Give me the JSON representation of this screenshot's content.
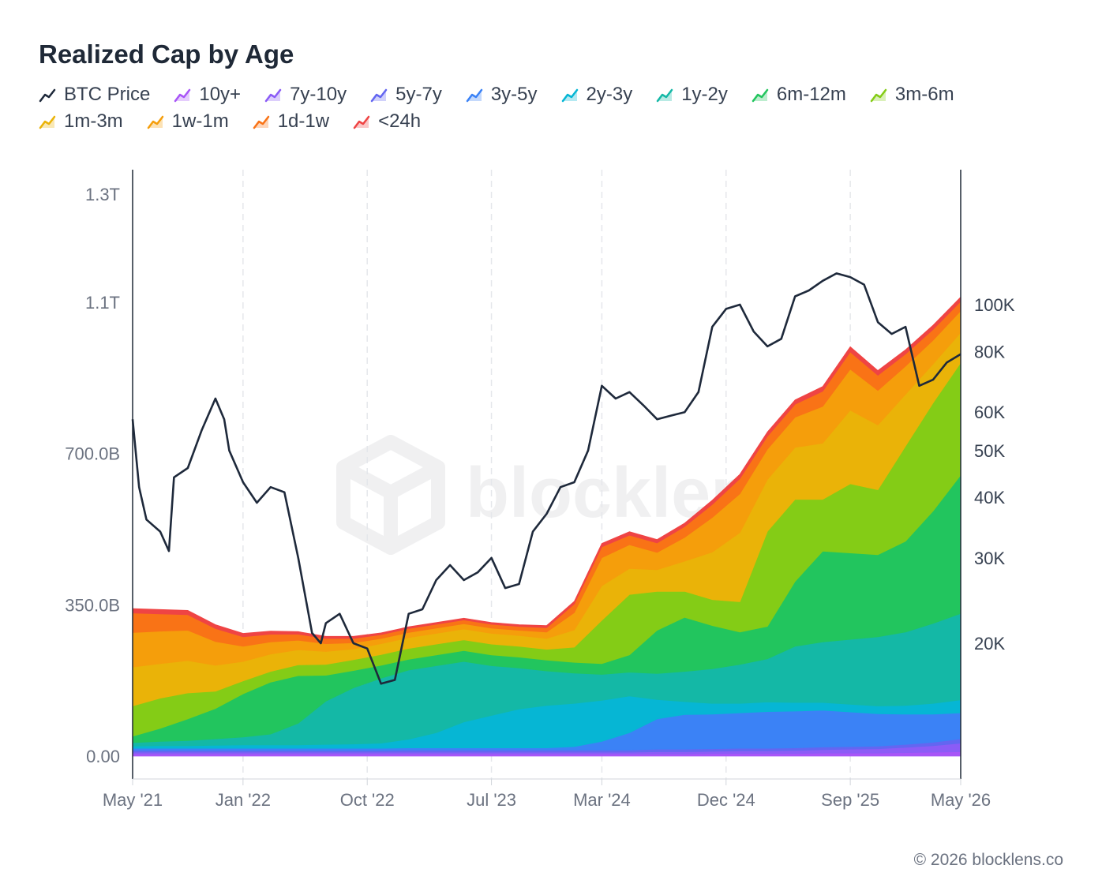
{
  "chart_data": {
    "type": "area",
    "title": "Realized Cap by Age",
    "x_ticks": [
      "May '21",
      "Jan '22",
      "Oct '22",
      "Jul '23",
      "Mar '24",
      "Dec '24",
      "Sep '25",
      "May '26"
    ],
    "x_tick_times": [
      "2021-05",
      "2022-01",
      "2022-10",
      "2023-07",
      "2024-03",
      "2024-12",
      "2025-09",
      "2026-05"
    ],
    "x_range": [
      "2021-05",
      "2026-05"
    ],
    "y_left": {
      "ticks": [
        "0.00",
        "350.0B",
        "700.0B",
        "1.1T",
        "1.3T"
      ],
      "tick_values_billion": [
        0,
        350,
        700,
        1050,
        1300
      ],
      "range_billion": [
        0,
        1350
      ]
    },
    "y_right": {
      "scale": "log",
      "ticks": [
        "20K",
        "30K",
        "40K",
        "50K",
        "60K",
        "80K",
        "100K"
      ],
      "tick_values": [
        20000,
        30000,
        40000,
        50000,
        60000,
        80000,
        100000
      ]
    },
    "legend_position": "top-left",
    "grid": "vertical-dashed",
    "x": [
      "2021-05",
      "2021-07",
      "2021-09",
      "2021-11",
      "2022-01",
      "2022-03",
      "2022-05",
      "2022-07",
      "2022-09",
      "2022-11",
      "2023-01",
      "2023-03",
      "2023-05",
      "2023-07",
      "2023-09",
      "2023-11",
      "2024-01",
      "2024-03",
      "2024-05",
      "2024-07",
      "2024-09",
      "2024-11",
      "2025-01",
      "2025-03",
      "2025-05",
      "2025-07",
      "2025-09",
      "2025-11",
      "2026-01",
      "2026-03",
      "2026-05"
    ],
    "series": [
      {
        "name": "10y+",
        "color": "#a855f7",
        "values": [
          5,
          5,
          5,
          5,
          5,
          5,
          5,
          5,
          5,
          5,
          5,
          5,
          5,
          5,
          5,
          5,
          5,
          5,
          5,
          5,
          5,
          6,
          6,
          6,
          6,
          7,
          7,
          7,
          8,
          9,
          10
        ]
      },
      {
        "name": "7y-10y",
        "color": "#8b5cf6",
        "values": [
          4,
          4,
          4,
          4,
          4,
          4,
          4,
          4,
          4,
          4,
          4,
          4,
          4,
          4,
          4,
          4,
          4,
          4,
          4,
          5,
          5,
          5,
          6,
          6,
          7,
          8,
          9,
          10,
          12,
          15,
          20
        ]
      },
      {
        "name": "5y-7y",
        "color": "#6366f1",
        "values": [
          4,
          4,
          4,
          4,
          4,
          4,
          4,
          4,
          4,
          4,
          5,
          5,
          5,
          5,
          5,
          5,
          5,
          5,
          5,
          6,
          6,
          6,
          6,
          6,
          6,
          6,
          6,
          6,
          7,
          8,
          10
        ]
      },
      {
        "name": "3y-5y",
        "color": "#3b82f6",
        "values": [
          5,
          5,
          5,
          5,
          5,
          5,
          5,
          5,
          5,
          5,
          5,
          5,
          5,
          5,
          5,
          5,
          8,
          20,
          40,
          70,
          80,
          80,
          82,
          85,
          85,
          85,
          80,
          75,
          70,
          65,
          60
        ]
      },
      {
        "name": "2y-3y",
        "color": "#06b6d4",
        "values": [
          5,
          6,
          6,
          7,
          8,
          8,
          8,
          9,
          10,
          12,
          20,
          35,
          60,
          75,
          90,
          98,
          100,
          95,
          85,
          45,
          30,
          25,
          22,
          22,
          20,
          18,
          18,
          18,
          20,
          25,
          30
        ]
      },
      {
        "name": "1y-2y",
        "color": "#14b8a6",
        "values": [
          8,
          10,
          12,
          15,
          18,
          25,
          50,
          100,
          130,
          150,
          160,
          155,
          140,
          115,
          95,
          80,
          70,
          60,
          55,
          60,
          70,
          80,
          90,
          100,
          130,
          140,
          150,
          160,
          170,
          185,
          200
        ]
      },
      {
        "name": "6m-12m",
        "color": "#22c55e",
        "values": [
          15,
          30,
          50,
          70,
          100,
          120,
          110,
          60,
          40,
          30,
          25,
          25,
          25,
          25,
          25,
          25,
          25,
          25,
          40,
          100,
          125,
          100,
          75,
          75,
          150,
          210,
          200,
          190,
          210,
          260,
          320
        ]
      },
      {
        "name": "3m-6m",
        "color": "#84cc16",
        "values": [
          70,
          70,
          60,
          40,
          30,
          25,
          25,
          25,
          25,
          25,
          25,
          25,
          25,
          25,
          25,
          25,
          35,
          100,
          140,
          90,
          60,
          60,
          70,
          220,
          190,
          120,
          160,
          150,
          220,
          250,
          260
        ]
      },
      {
        "name": "1m-3m",
        "color": "#eab308",
        "values": [
          90,
          80,
          75,
          60,
          45,
          40,
          35,
          30,
          25,
          25,
          25,
          25,
          25,
          25,
          25,
          25,
          40,
          80,
          60,
          50,
          70,
          110,
          160,
          120,
          120,
          130,
          170,
          150,
          120,
          90,
          70
        ]
      },
      {
        "name": "1w-1m",
        "color": "#f59e0b",
        "values": [
          80,
          75,
          70,
          55,
          35,
          28,
          22,
          18,
          14,
          12,
          12,
          12,
          12,
          12,
          12,
          15,
          40,
          65,
          55,
          40,
          55,
          80,
          90,
          70,
          70,
          85,
          95,
          80,
          65,
          55,
          50
        ]
      },
      {
        "name": "1d-1w",
        "color": "#f97316",
        "values": [
          45,
          40,
          36,
          30,
          22,
          18,
          14,
          12,
          10,
          9,
          9,
          9,
          9,
          9,
          9,
          10,
          20,
          25,
          22,
          22,
          25,
          30,
          35,
          30,
          30,
          35,
          40,
          35,
          28,
          25,
          22
        ]
      },
      {
        "name": "<24h",
        "color": "#ef4444",
        "values": [
          10,
          10,
          10,
          9,
          8,
          7,
          6,
          5,
          5,
          4,
          4,
          4,
          4,
          4,
          4,
          5,
          6,
          8,
          8,
          8,
          8,
          10,
          10,
          10,
          10,
          11,
          12,
          11,
          10,
          10,
          10
        ]
      }
    ],
    "price_series": {
      "name": "BTC Price",
      "color": "#1e293b",
      "axis": "right",
      "x": [
        "2021-05",
        "2021-05-15",
        "2021-06",
        "2021-07",
        "2021-07-20",
        "2021-08",
        "2021-09",
        "2021-10",
        "2021-11",
        "2021-11-20",
        "2021-12",
        "2022-01",
        "2022-02",
        "2022-03",
        "2022-04",
        "2022-05",
        "2022-06",
        "2022-06-20",
        "2022-07",
        "2022-08",
        "2022-09",
        "2022-10",
        "2022-11",
        "2022-12",
        "2023-01",
        "2023-02",
        "2023-03",
        "2023-04",
        "2023-05",
        "2023-06",
        "2023-07",
        "2023-08",
        "2023-09",
        "2023-10",
        "2023-11",
        "2023-12",
        "2024-01",
        "2024-02",
        "2024-03",
        "2024-04",
        "2024-05",
        "2024-06",
        "2024-07",
        "2024-08",
        "2024-09",
        "2024-10",
        "2024-11",
        "2024-12",
        "2025-01",
        "2025-02",
        "2025-03",
        "2025-04",
        "2025-05",
        "2025-06",
        "2025-07",
        "2025-08",
        "2025-09",
        "2025-10",
        "2025-11",
        "2025-12",
        "2026-01",
        "2026-02",
        "2026-03",
        "2026-04",
        "2026-05"
      ],
      "values": [
        58000,
        42000,
        36000,
        34000,
        31000,
        44000,
        46000,
        55000,
        64000,
        58000,
        50000,
        43000,
        39000,
        42000,
        41000,
        30000,
        21000,
        20000,
        22000,
        23000,
        20000,
        19500,
        16500,
        16800,
        23000,
        23500,
        27000,
        29000,
        27000,
        28000,
        30000,
        26000,
        26500,
        34000,
        37000,
        42000,
        43000,
        50000,
        68000,
        64000,
        66000,
        62000,
        58000,
        59000,
        60000,
        66000,
        90000,
        98000,
        100000,
        88000,
        82000,
        85000,
        104000,
        107000,
        112000,
        116000,
        114000,
        110000,
        92000,
        87000,
        90000,
        68000,
        70000,
        76000,
        79000
      ]
    }
  },
  "legend": [
    {
      "label": "BTC Price",
      "color": "#1e293b",
      "icon": "line-icon"
    },
    {
      "label": "10y+",
      "color": "#a855f7",
      "icon": "area-icon"
    },
    {
      "label": "7y-10y",
      "color": "#8b5cf6",
      "icon": "area-icon"
    },
    {
      "label": "5y-7y",
      "color": "#6366f1",
      "icon": "area-icon"
    },
    {
      "label": "3y-5y",
      "color": "#3b82f6",
      "icon": "area-icon"
    },
    {
      "label": "2y-3y",
      "color": "#06b6d4",
      "icon": "area-icon"
    },
    {
      "label": "1y-2y",
      "color": "#14b8a6",
      "icon": "area-icon"
    },
    {
      "label": "6m-12m",
      "color": "#22c55e",
      "icon": "area-icon"
    },
    {
      "label": "3m-6m",
      "color": "#84cc16",
      "icon": "area-icon"
    },
    {
      "label": "1m-3m",
      "color": "#eab308",
      "icon": "area-icon"
    },
    {
      "label": "1w-1m",
      "color": "#f59e0b",
      "icon": "area-icon"
    },
    {
      "label": "1d-1w",
      "color": "#f97316",
      "icon": "area-icon"
    },
    {
      "label": "<24h",
      "color": "#ef4444",
      "icon": "area-icon"
    }
  ],
  "watermark": "blocklens",
  "footer": "© 2026 blocklens.co"
}
